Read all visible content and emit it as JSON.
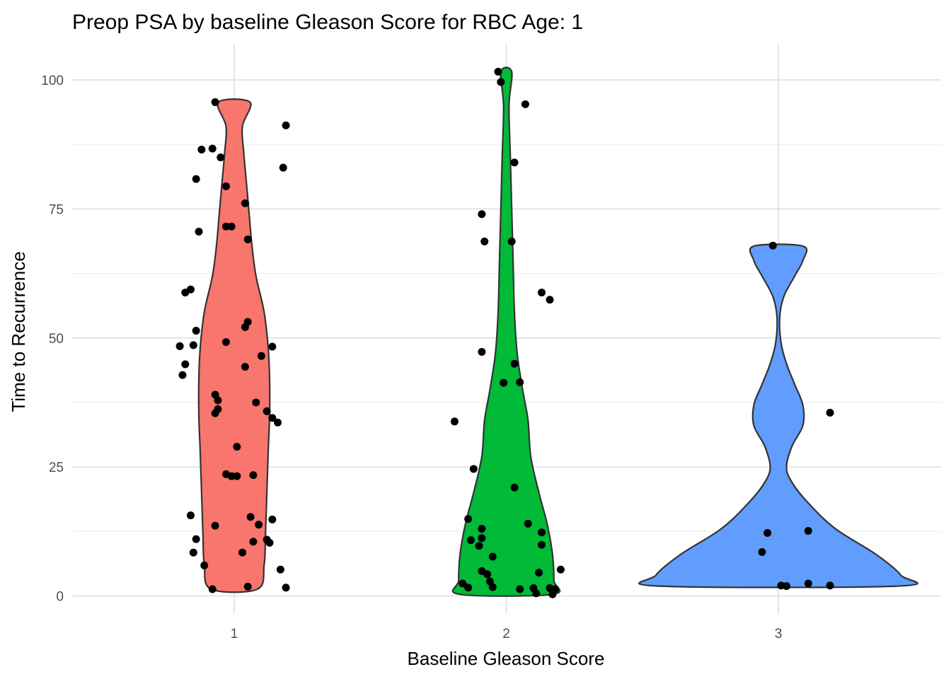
{
  "chart_data": {
    "type": "violin",
    "title": "Preop PSA by baseline Gleason Score for RBC Age: 1",
    "xlabel": "Baseline Gleason Score",
    "ylabel": "Time to Recurrence",
    "categories": [
      "1",
      "2",
      "3"
    ],
    "x_tick_labels": [
      "1",
      "2",
      "3"
    ],
    "y_ticks": [
      0,
      25,
      50,
      75,
      100
    ],
    "y_tick_labels": [
      "0",
      "25",
      "50",
      "75",
      "100"
    ],
    "ylim": [
      -3.5,
      107
    ],
    "grid": true,
    "legend": "none",
    "colors": {
      "1": "#F8766D",
      "2": "#00BA38",
      "3": "#619CFF"
    },
    "violins": [
      {
        "category": "1",
        "fill": "#F8766D",
        "range": [
          1.3,
          95.7
        ],
        "density_profile": [
          {
            "y": 1.3,
            "w": 0.085
          },
          {
            "y": 6,
            "w": 0.11
          },
          {
            "y": 12,
            "w": 0.115
          },
          {
            "y": 20,
            "w": 0.12
          },
          {
            "y": 28,
            "w": 0.125
          },
          {
            "y": 35,
            "w": 0.13
          },
          {
            "y": 42,
            "w": 0.13
          },
          {
            "y": 48,
            "w": 0.125
          },
          {
            "y": 55,
            "w": 0.11
          },
          {
            "y": 62,
            "w": 0.08
          },
          {
            "y": 68,
            "w": 0.065
          },
          {
            "y": 74,
            "w": 0.055
          },
          {
            "y": 80,
            "w": 0.045
          },
          {
            "y": 86,
            "w": 0.035
          },
          {
            "y": 91,
            "w": 0.03
          },
          {
            "y": 95.7,
            "w": 0.058
          }
        ]
      },
      {
        "category": "2",
        "fill": "#00BA38",
        "range": [
          0.3,
          101.6
        ],
        "density_profile": [
          {
            "y": 0.3,
            "w": 0.17
          },
          {
            "y": 3,
            "w": 0.175
          },
          {
            "y": 8,
            "w": 0.17
          },
          {
            "y": 14,
            "w": 0.15
          },
          {
            "y": 20,
            "w": 0.12
          },
          {
            "y": 27,
            "w": 0.09
          },
          {
            "y": 34,
            "w": 0.08
          },
          {
            "y": 40,
            "w": 0.06
          },
          {
            "y": 47,
            "w": 0.04
          },
          {
            "y": 55,
            "w": 0.03
          },
          {
            "y": 65,
            "w": 0.025
          },
          {
            "y": 75,
            "w": 0.02
          },
          {
            "y": 85,
            "w": 0.015
          },
          {
            "y": 95,
            "w": 0.01
          },
          {
            "y": 101.6,
            "w": 0.02
          }
        ]
      },
      {
        "category": "3",
        "fill": "#619CFF",
        "range": [
          1.9,
          67.8
        ],
        "density_profile": [
          {
            "y": 1.9,
            "w": 0.44
          },
          {
            "y": 4,
            "w": 0.45
          },
          {
            "y": 8,
            "w": 0.36
          },
          {
            "y": 13,
            "w": 0.21
          },
          {
            "y": 18,
            "w": 0.11
          },
          {
            "y": 22,
            "w": 0.05
          },
          {
            "y": 25,
            "w": 0.03
          },
          {
            "y": 29,
            "w": 0.05
          },
          {
            "y": 33,
            "w": 0.09
          },
          {
            "y": 37,
            "w": 0.09
          },
          {
            "y": 41,
            "w": 0.06
          },
          {
            "y": 45,
            "w": 0.03
          },
          {
            "y": 49,
            "w": 0.01
          },
          {
            "y": 54,
            "w": 0.005
          },
          {
            "y": 58,
            "w": 0.02
          },
          {
            "y": 62,
            "w": 0.06
          },
          {
            "y": 65,
            "w": 0.09
          },
          {
            "y": 67.8,
            "w": 0.09
          }
        ]
      }
    ],
    "points": [
      {
        "x": 0.93,
        "y": 95.7
      },
      {
        "x": 1.19,
        "y": 91.2
      },
      {
        "x": 0.92,
        "y": 86.7
      },
      {
        "x": 0.88,
        "y": 86.5
      },
      {
        "x": 0.95,
        "y": 85.0
      },
      {
        "x": 1.18,
        "y": 83.0
      },
      {
        "x": 0.86,
        "y": 80.8
      },
      {
        "x": 0.97,
        "y": 79.4
      },
      {
        "x": 1.04,
        "y": 76.1
      },
      {
        "x": 0.97,
        "y": 71.6
      },
      {
        "x": 0.99,
        "y": 71.6
      },
      {
        "x": 0.87,
        "y": 70.6
      },
      {
        "x": 1.05,
        "y": 69.1
      },
      {
        "x": 0.84,
        "y": 59.4
      },
      {
        "x": 0.82,
        "y": 58.8
      },
      {
        "x": 1.05,
        "y": 53.1
      },
      {
        "x": 1.04,
        "y": 52.1
      },
      {
        "x": 0.86,
        "y": 51.4
      },
      {
        "x": 0.97,
        "y": 49.2
      },
      {
        "x": 0.85,
        "y": 48.6
      },
      {
        "x": 0.8,
        "y": 48.4
      },
      {
        "x": 1.14,
        "y": 48.3
      },
      {
        "x": 1.1,
        "y": 46.5
      },
      {
        "x": 0.82,
        "y": 44.9
      },
      {
        "x": 1.04,
        "y": 44.4
      },
      {
        "x": 0.81,
        "y": 42.8
      },
      {
        "x": 0.93,
        "y": 39.0
      },
      {
        "x": 0.94,
        "y": 37.9
      },
      {
        "x": 1.08,
        "y": 37.5
      },
      {
        "x": 0.94,
        "y": 36.2
      },
      {
        "x": 0.93,
        "y": 35.4
      },
      {
        "x": 1.12,
        "y": 35.8
      },
      {
        "x": 1.14,
        "y": 34.5
      },
      {
        "x": 1.16,
        "y": 33.6
      },
      {
        "x": 1.01,
        "y": 28.9
      },
      {
        "x": 0.97,
        "y": 23.6
      },
      {
        "x": 0.99,
        "y": 23.2
      },
      {
        "x": 1.01,
        "y": 23.2
      },
      {
        "x": 1.07,
        "y": 23.4
      },
      {
        "x": 0.84,
        "y": 15.6
      },
      {
        "x": 1.06,
        "y": 15.3
      },
      {
        "x": 1.14,
        "y": 14.8
      },
      {
        "x": 1.09,
        "y": 13.8
      },
      {
        "x": 0.93,
        "y": 13.6
      },
      {
        "x": 0.86,
        "y": 11.0
      },
      {
        "x": 1.12,
        "y": 10.9
      },
      {
        "x": 1.13,
        "y": 10.3
      },
      {
        "x": 1.07,
        "y": 10.5
      },
      {
        "x": 0.85,
        "y": 8.4
      },
      {
        "x": 1.03,
        "y": 8.4
      },
      {
        "x": 0.89,
        "y": 5.9
      },
      {
        "x": 1.17,
        "y": 5.1
      },
      {
        "x": 1.05,
        "y": 1.8
      },
      {
        "x": 0.92,
        "y": 1.3
      },
      {
        "x": 1.19,
        "y": 1.6
      },
      {
        "x": 1.97,
        "y": 101.6
      },
      {
        "x": 1.98,
        "y": 99.6
      },
      {
        "x": 2.07,
        "y": 95.3
      },
      {
        "x": 2.03,
        "y": 84.0
      },
      {
        "x": 1.91,
        "y": 74.0
      },
      {
        "x": 1.92,
        "y": 68.7
      },
      {
        "x": 2.02,
        "y": 68.7
      },
      {
        "x": 2.13,
        "y": 58.8
      },
      {
        "x": 2.16,
        "y": 57.4
      },
      {
        "x": 1.91,
        "y": 47.3
      },
      {
        "x": 2.03,
        "y": 45.0
      },
      {
        "x": 1.99,
        "y": 41.3
      },
      {
        "x": 2.05,
        "y": 41.4
      },
      {
        "x": 1.81,
        "y": 33.8
      },
      {
        "x": 1.88,
        "y": 24.6
      },
      {
        "x": 2.03,
        "y": 21.0
      },
      {
        "x": 1.86,
        "y": 14.9
      },
      {
        "x": 2.08,
        "y": 14.0
      },
      {
        "x": 1.91,
        "y": 13.0
      },
      {
        "x": 2.13,
        "y": 12.3
      },
      {
        "x": 1.91,
        "y": 11.2
      },
      {
        "x": 1.87,
        "y": 10.8
      },
      {
        "x": 1.9,
        "y": 9.7
      },
      {
        "x": 2.13,
        "y": 9.9
      },
      {
        "x": 1.95,
        "y": 7.6
      },
      {
        "x": 2.2,
        "y": 5.1
      },
      {
        "x": 1.91,
        "y": 4.8
      },
      {
        "x": 1.93,
        "y": 4.2
      },
      {
        "x": 2.12,
        "y": 4.5
      },
      {
        "x": 1.94,
        "y": 2.8
      },
      {
        "x": 1.84,
        "y": 2.4
      },
      {
        "x": 1.86,
        "y": 1.6
      },
      {
        "x": 1.95,
        "y": 1.7
      },
      {
        "x": 2.05,
        "y": 1.3
      },
      {
        "x": 2.1,
        "y": 1.5
      },
      {
        "x": 2.16,
        "y": 1.5
      },
      {
        "x": 2.18,
        "y": 1.3
      },
      {
        "x": 2.11,
        "y": 0.5
      },
      {
        "x": 2.17,
        "y": 0.3
      },
      {
        "x": 2.98,
        "y": 67.9
      },
      {
        "x": 3.19,
        "y": 35.5
      },
      {
        "x": 3.11,
        "y": 12.6
      },
      {
        "x": 2.96,
        "y": 12.2
      },
      {
        "x": 2.94,
        "y": 8.5
      },
      {
        "x": 3.01,
        "y": 2.0
      },
      {
        "x": 3.03,
        "y": 1.9
      },
      {
        "x": 3.11,
        "y": 2.4
      },
      {
        "x": 3.19,
        "y": 2.0
      }
    ]
  }
}
